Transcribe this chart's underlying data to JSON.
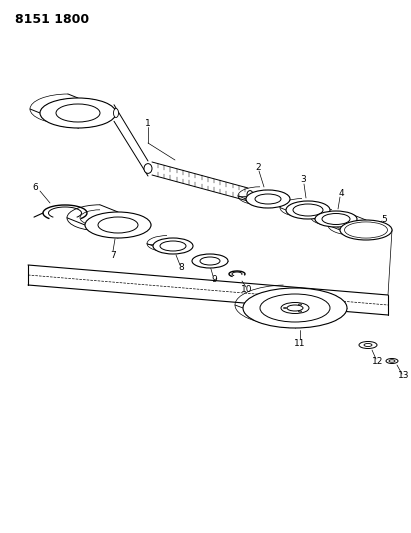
{
  "title": "8151 1800",
  "background_color": "#ffffff",
  "line_color": "#000000",
  "figsize": [
    4.11,
    5.33
  ],
  "dpi": 100,
  "label_fontsize": 6.5,
  "title_fontsize": 9
}
